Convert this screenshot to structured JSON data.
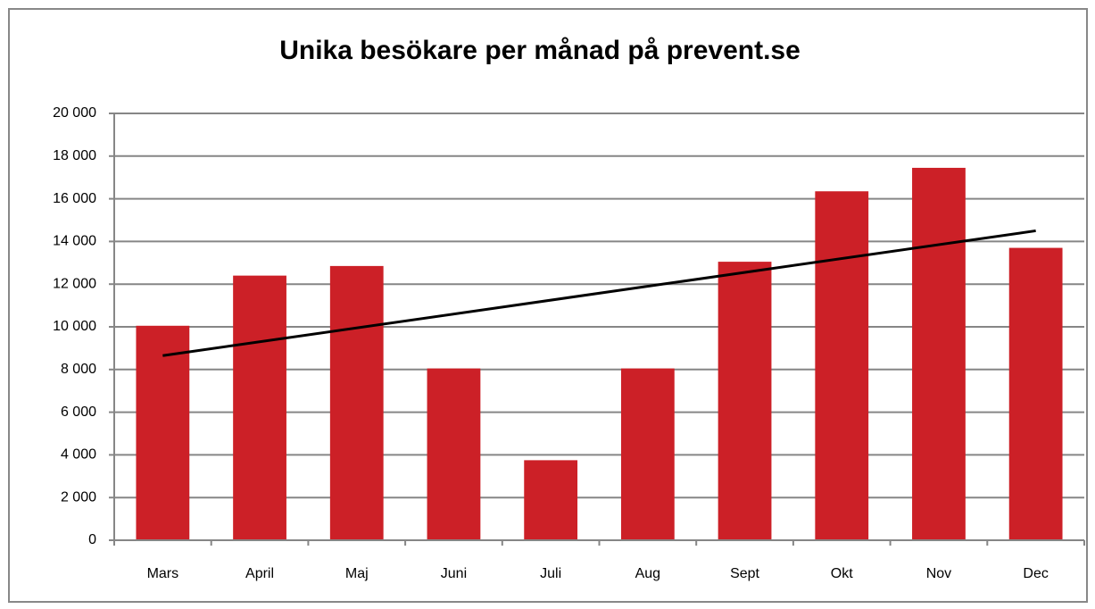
{
  "chart_data": {
    "type": "bar",
    "title": "Unika besökare per månad på prevent.se",
    "categories": [
      "Mars",
      "April",
      "Maj",
      "Juni",
      "Juli",
      "Aug",
      "Sept",
      "Okt",
      "Nov",
      "Dec"
    ],
    "values": [
      10050,
      12400,
      12850,
      8050,
      3750,
      8050,
      13050,
      16350,
      17450,
      13700
    ],
    "color": "#cc2027",
    "trendline": {
      "values": [
        8650,
        14500
      ],
      "color": "#000000"
    },
    "ylim": [
      0,
      20000
    ],
    "yticks": [
      0,
      {
        "value": 2000,
        "label": "2 000"
      },
      {
        "value": 4000,
        "label": "4 000"
      },
      {
        "value": 6000,
        "label": "6 000"
      },
      {
        "value": 8000,
        "label": "8 000"
      },
      {
        "value": 10000,
        "label": "10 000"
      },
      {
        "value": 12000,
        "label": "12 000"
      },
      {
        "value": 14000,
        "label": "14 000"
      },
      {
        "value": 16000,
        "label": "16 000"
      },
      {
        "value": 18000,
        "label": "18 000"
      },
      {
        "value": 20000,
        "label": "20 000"
      }
    ],
    "grid": true
  }
}
